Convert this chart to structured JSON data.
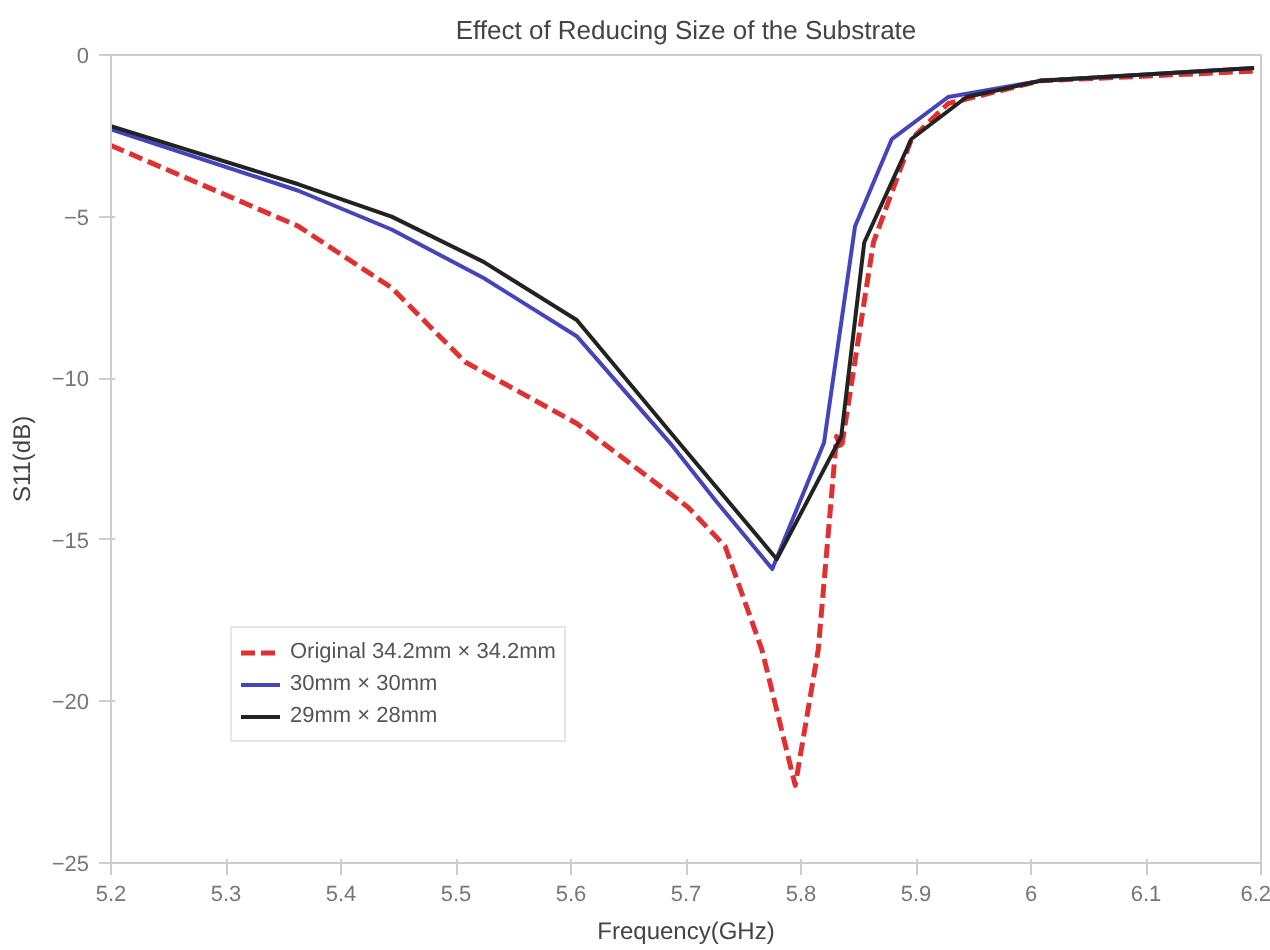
{
  "chart_data": {
    "type": "line",
    "title": "Effect of Reducing Size of the Substrate",
    "xlabel": "Frequency(GHz)",
    "ylabel": "S11(dB)",
    "xlim": [
      5.2,
      6.2
    ],
    "ylim": [
      -25,
      0
    ],
    "xticks": [
      5.2,
      5.3,
      5.4,
      5.5,
      5.6,
      5.7,
      5.8,
      5.9,
      {
        "value": 6.0,
        "label": "6"
      },
      6.1,
      6.2
    ],
    "yticks": [
      -25,
      -20,
      -15,
      -10,
      -5,
      0
    ],
    "grid": false,
    "legend": "bottom left",
    "marker": "none",
    "series": [
      {
        "name": "Original 34.2mm × 34.2mm",
        "color": "#e03030",
        "line_style": "dashed",
        "x": [
          5.2,
          5.363,
          5.444,
          5.508,
          5.605,
          5.65,
          5.702,
          5.734,
          5.766,
          5.795,
          5.815,
          5.831,
          5.835,
          5.863,
          5.896,
          5.928,
          6.008,
          6.194
        ],
        "values": [
          -2.8,
          -5.3,
          -7.2,
          -9.5,
          -11.4,
          -12.6,
          -14.0,
          -15.2,
          -18.4,
          -22.6,
          -18.4,
          -11.8,
          -12.2,
          -5.8,
          -2.6,
          -1.5,
          -0.8,
          -0.5
        ]
      },
      {
        "name": "30mm × 30mm",
        "color": "#4444bb",
        "line_style": "solid",
        "x": [
          5.2,
          5.363,
          5.444,
          5.524,
          5.605,
          5.686,
          5.726,
          5.775,
          5.82,
          5.847,
          5.879,
          5.928,
          6.008,
          6.194
        ],
        "values": [
          -2.3,
          -4.2,
          -5.4,
          -6.9,
          -8.7,
          -12.0,
          -13.8,
          -15.9,
          -12.0,
          -5.3,
          -2.6,
          -1.3,
          -0.8,
          -0.4
        ]
      },
      {
        "name": "29mm × 28mm",
        "color": "#222222",
        "line_style": "solid",
        "x": [
          5.2,
          5.363,
          5.444,
          5.524,
          5.605,
          5.694,
          5.779,
          5.835,
          5.855,
          5.896,
          5.944,
          6.008,
          6.194
        ],
        "values": [
          -2.2,
          -4.0,
          -5.0,
          -6.4,
          -8.2,
          -12.0,
          -15.6,
          -11.8,
          -5.8,
          -2.6,
          -1.3,
          -0.8,
          -0.4
        ]
      }
    ]
  }
}
